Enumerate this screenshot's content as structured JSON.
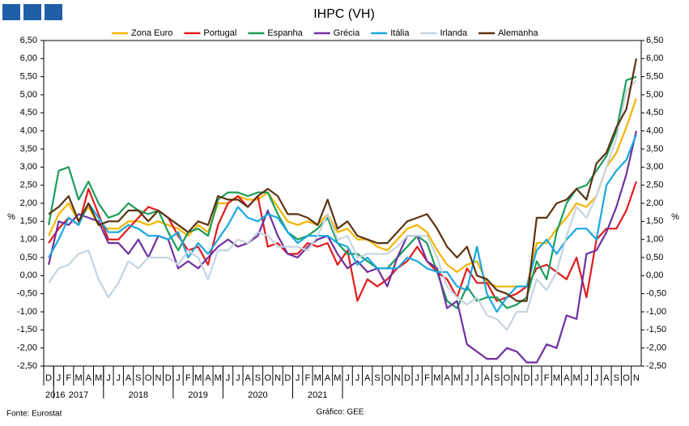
{
  "chart_data": {
    "type": "line",
    "title": "IHPC (VH)",
    "ylabel": "%",
    "y2label": "%",
    "source": "Fonte: Eurostat",
    "credit": "Gráfico: GEE",
    "years": [
      "2016",
      "2017",
      "2018",
      "2019",
      "2020",
      "2021"
    ],
    "categories": [
      "D",
      "J",
      "F",
      "M",
      "A",
      "M",
      "J",
      "J",
      "A",
      "S",
      "O",
      "N",
      "D",
      "J",
      "F",
      "M",
      "A",
      "M",
      "J",
      "J",
      "A",
      "S",
      "O",
      "N",
      "D",
      "J",
      "F",
      "M",
      "A",
      "M",
      "J",
      "J",
      "A",
      "S",
      "O",
      "N",
      "D",
      "J",
      "F",
      "M",
      "A",
      "M",
      "J",
      "J",
      "A",
      "S",
      "O",
      "N",
      "D",
      "J",
      "F",
      "M",
      "A",
      "M",
      "J",
      "J",
      "A",
      "S",
      "O",
      "N"
    ],
    "ylim": [
      -2.5,
      6.5
    ],
    "y2lim": [
      -2.5,
      6.5
    ],
    "yticks": [
      {
        "value": 6.5,
        "label": "6,50"
      },
      {
        "value": 6,
        "label": "6,00"
      },
      {
        "value": 5.5,
        "label": "5,50"
      },
      {
        "value": 5,
        "label": "5,00"
      },
      {
        "value": 4.5,
        "label": "4,50"
      },
      {
        "value": 4,
        "label": "4,00"
      },
      {
        "value": 3.5,
        "label": "3,50"
      },
      {
        "value": 3,
        "label": "3,00"
      },
      {
        "value": 2.5,
        "label": "2,50"
      },
      {
        "value": 2,
        "label": "2,00"
      },
      {
        "value": 1.5,
        "label": "1,50"
      },
      {
        "value": 1,
        "label": "1,00"
      },
      {
        "value": 0.5,
        "label": "0,50"
      },
      {
        "value": 0,
        "label": "0,00"
      },
      {
        "value": -0.5,
        "label": "-0,50"
      },
      {
        "value": -1,
        "label": "-1,00"
      },
      {
        "value": -1.5,
        "label": "-1,50"
      },
      {
        "value": -2,
        "label": "-2,00"
      },
      {
        "value": -2.5,
        "label": "-2,50"
      }
    ],
    "y2ticks": [
      {
        "value": 6.5,
        "label": "6,50"
      },
      {
        "value": 6,
        "label": "6,00"
      },
      {
        "value": 5.5,
        "label": "5,50"
      },
      {
        "value": 5,
        "label": "5,00"
      },
      {
        "value": 4.5,
        "label": "4,50"
      },
      {
        "value": 4,
        "label": "4,00"
      },
      {
        "value": 3.5,
        "label": "3,50"
      },
      {
        "value": 3,
        "label": "3,00"
      },
      {
        "value": 2.5,
        "label": "2,50"
      },
      {
        "value": 2,
        "label": "2,00"
      },
      {
        "value": 1.5,
        "label": "1,50"
      },
      {
        "value": 1,
        "label": "1,00"
      },
      {
        "value": 0.5,
        "label": "0,50"
      },
      {
        "value": 0,
        "label": "0,00"
      },
      {
        "value": -0.5,
        "label": "-0,50"
      },
      {
        "value": -1,
        "label": "-1,00"
      },
      {
        "value": -1.5,
        "label": "-1,50"
      },
      {
        "value": -2,
        "label": "-2,00"
      },
      {
        "value": -2.5,
        "label": "-2,50"
      }
    ],
    "grid": false,
    "legend": "top",
    "series": [
      {
        "name": "Zona Euro",
        "color": "#f5b400",
        "values": [
          1.1,
          1.7,
          2.0,
          1.5,
          1.9,
          1.4,
          1.3,
          1.3,
          1.5,
          1.5,
          1.4,
          1.5,
          1.4,
          1.3,
          1.1,
          1.4,
          1.2,
          2.0,
          2.0,
          2.2,
          2.1,
          2.1,
          2.3,
          1.9,
          1.5,
          1.4,
          1.5,
          1.4,
          1.7,
          1.2,
          1.3,
          1.0,
          1.0,
          0.8,
          0.7,
          1.0,
          1.3,
          1.4,
          1.2,
          0.7,
          0.3,
          0.1,
          0.3,
          0.4,
          -0.2,
          -0.3,
          -0.3,
          -0.3,
          -0.3,
          0.9,
          0.9,
          1.3,
          1.6,
          2.0,
          1.9,
          2.2,
          3.0,
          3.4,
          4.1,
          4.9
        ]
      },
      {
        "name": "Portugal",
        "color": "#e31a1c",
        "values": [
          0.9,
          1.3,
          1.6,
          1.4,
          2.4,
          1.7,
          1.0,
          1.0,
          1.3,
          1.6,
          1.9,
          1.8,
          1.6,
          1.1,
          0.7,
          0.8,
          0.3,
          1.4,
          2.0,
          2.2,
          1.9,
          2.2,
          0.8,
          0.9,
          0.6,
          0.6,
          0.9,
          0.8,
          0.9,
          0.3,
          0.7,
          -0.7,
          -0.1,
          -0.3,
          -0.1,
          0.2,
          0.4,
          0.8,
          0.4,
          0.1,
          -0.1,
          -0.6,
          0.2,
          -0.2,
          -0.2,
          -0.7,
          -0.6,
          -0.5,
          -0.3,
          0.2,
          0.3,
          0.1,
          -0.1,
          0.5,
          -0.6,
          1.0,
          1.3,
          1.3,
          1.8,
          2.6
        ]
      },
      {
        "name": "Espanha",
        "color": "#1a9e5a",
        "values": [
          1.4,
          2.9,
          3.0,
          2.1,
          2.6,
          2.0,
          1.6,
          1.7,
          2.0,
          1.8,
          1.7,
          1.8,
          1.2,
          0.7,
          1.2,
          1.3,
          1.1,
          2.1,
          2.3,
          2.3,
          2.2,
          2.3,
          2.3,
          1.7,
          1.2,
          1.0,
          1.1,
          1.3,
          1.6,
          0.9,
          0.6,
          0.6,
          0.4,
          0.2,
          0.2,
          0.5,
          0.8,
          1.1,
          0.9,
          0.1,
          -0.7,
          -0.9,
          -0.3,
          -0.7,
          -0.6,
          -0.6,
          -0.9,
          -0.8,
          -0.6,
          0.4,
          -0.1,
          1.2,
          2.0,
          2.4,
          2.5,
          2.9,
          3.3,
          4.0,
          5.4,
          5.5
        ]
      },
      {
        "name": "Grécia",
        "color": "#7030a0",
        "values": [
          0.3,
          1.5,
          1.4,
          1.7,
          1.6,
          1.5,
          0.9,
          0.9,
          0.6,
          1.0,
          0.5,
          1.1,
          1.0,
          0.2,
          0.4,
          0.2,
          0.5,
          0.8,
          1.0,
          0.8,
          0.9,
          1.1,
          1.8,
          1.1,
          0.6,
          0.5,
          0.8,
          1.0,
          1.1,
          0.6,
          0.2,
          0.4,
          0.1,
          0.2,
          -0.3,
          0.5,
          1.1,
          1.1,
          0.4,
          0.2,
          -0.9,
          -0.7,
          -1.9,
          -2.1,
          -2.3,
          -2.3,
          -2.0,
          -2.1,
          -2.4,
          -2.4,
          -1.9,
          -2.0,
          -1.1,
          -1.2,
          0.6,
          0.7,
          1.2,
          1.9,
          2.8,
          4.0
        ]
      },
      {
        "name": "Itália",
        "color": "#1aa7e0",
        "values": [
          0.5,
          1.0,
          1.6,
          1.4,
          2.0,
          1.6,
          1.2,
          1.2,
          1.4,
          1.3,
          1.1,
          1.1,
          1.0,
          1.2,
          0.5,
          0.9,
          0.6,
          1.0,
          1.4,
          1.9,
          1.6,
          1.5,
          1.7,
          1.6,
          1.2,
          0.9,
          1.1,
          1.1,
          1.1,
          0.9,
          0.8,
          0.3,
          0.5,
          0.2,
          0.2,
          0.2,
          0.5,
          0.4,
          0.2,
          0.1,
          0.1,
          -0.3,
          -0.4,
          0.8,
          -0.5,
          -1.0,
          -0.6,
          -0.3,
          -0.3,
          0.7,
          1.0,
          0.6,
          1.0,
          1.3,
          1.3,
          1.0,
          2.5,
          2.9,
          3.2,
          3.9
        ]
      },
      {
        "name": "Irlanda",
        "color": "#c6d4e1",
        "values": [
          -0.2,
          0.2,
          0.3,
          0.6,
          0.7,
          -0.1,
          -0.6,
          -0.2,
          0.4,
          0.2,
          0.5,
          0.5,
          0.5,
          0.3,
          0.7,
          0.5,
          -0.1,
          0.7,
          0.7,
          1.0,
          0.9,
          1.2,
          1.1,
          0.8,
          0.8,
          0.8,
          0.7,
          1.1,
          1.7,
          1.0,
          1.1,
          0.5,
          0.6,
          0.6,
          0.6,
          0.8,
          1.1,
          1.1,
          1.1,
          0.5,
          -0.3,
          -0.6,
          -0.8,
          -0.6,
          -1.1,
          -1.2,
          -1.5,
          -1.0,
          -1.0,
          -0.1,
          -0.4,
          0.1,
          1.1,
          1.9,
          1.6,
          2.2,
          3.0,
          3.8,
          5.1,
          5.4
        ]
      },
      {
        "name": "Alemanha",
        "color": "#5c3311",
        "values": [
          1.7,
          1.9,
          2.2,
          1.5,
          2.0,
          1.4,
          1.5,
          1.5,
          1.8,
          1.8,
          1.5,
          1.8,
          1.6,
          1.4,
          1.2,
          1.5,
          1.4,
          2.2,
          2.1,
          2.1,
          1.9,
          2.2,
          2.4,
          2.2,
          1.7,
          1.7,
          1.6,
          1.4,
          2.1,
          1.3,
          1.5,
          1.1,
          1.0,
          0.9,
          0.9,
          1.2,
          1.5,
          1.6,
          1.7,
          1.3,
          0.8,
          0.5,
          0.8,
          0.0,
          -0.1,
          -0.4,
          -0.5,
          -0.7,
          -0.7,
          1.6,
          1.6,
          2.0,
          2.1,
          2.4,
          2.1,
          3.1,
          3.4,
          4.1,
          4.6,
          6.0
        ]
      }
    ]
  }
}
